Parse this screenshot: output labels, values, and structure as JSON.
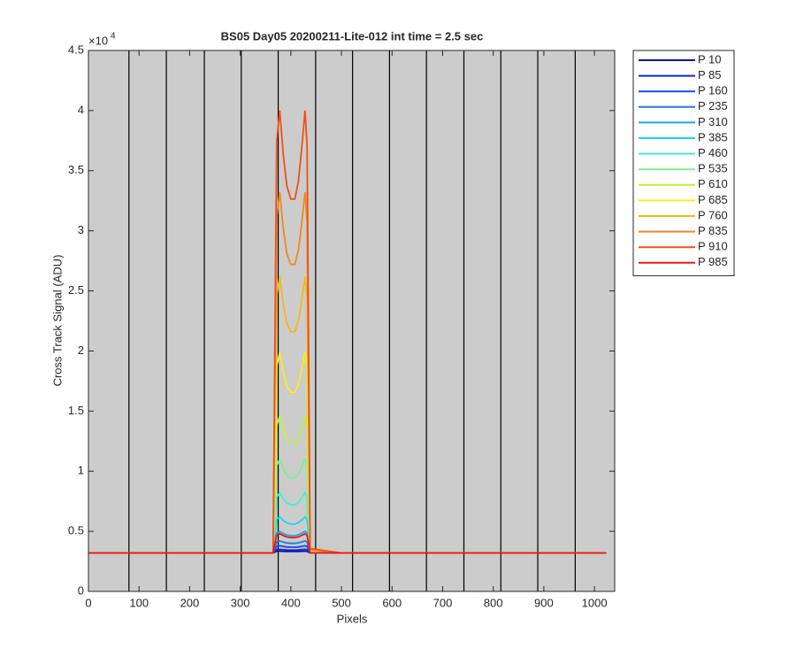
{
  "chart_data": {
    "type": "line",
    "title": "BS05 Day05 20200211-Lite-012 int time = 2.5 sec",
    "x_label": "Pixels",
    "y_label": "Cross Track Signal (ADU)",
    "y_multiplier": {
      "base": "×10",
      "power": "4"
    },
    "xlim": [
      0,
      1040
    ],
    "ylim": [
      0,
      45000
    ],
    "xticks": [
      0,
      100,
      200,
      300,
      400,
      500,
      600,
      700,
      800,
      900,
      1000
    ],
    "yticks": [
      0,
      {
        "value": 5000,
        "label": "0.5"
      },
      {
        "value": 10000,
        "label": "1"
      },
      {
        "value": 15000,
        "label": "1.5"
      },
      {
        "value": 20000,
        "label": "2"
      },
      {
        "value": 25000,
        "label": "2.5"
      },
      {
        "value": 30000,
        "label": "3"
      },
      {
        "value": 35000,
        "label": "3.5"
      },
      {
        "value": 40000,
        "label": "4"
      },
      {
        "value": 45000,
        "label": "4.5"
      }
    ],
    "vertical_lines": [
      80,
      154,
      229,
      302,
      375,
      449,
      522,
      595,
      668,
      742,
      815,
      888,
      962
    ],
    "vertical_line_color": "#000000",
    "background": "#cccccc",
    "legend": "outside-top-right",
    "x": [
      0,
      100,
      200,
      300,
      365,
      372,
      378,
      385,
      392,
      400,
      408,
      415,
      422,
      428,
      432,
      438,
      500,
      600,
      700,
      800,
      900,
      1023
    ],
    "series": [
      {
        "name": "P 10",
        "color": "#0a10b4",
        "values": [
          3200,
          3200,
          3200,
          3200,
          3200,
          3340,
          3350,
          3335,
          3325,
          3320,
          3320,
          3326,
          3338,
          3350,
          3338,
          3200,
          3200,
          3200,
          3200,
          3200,
          3200,
          3200
        ]
      },
      {
        "name": "P 85",
        "color": "#0c2bd6",
        "values": [
          3200,
          3200,
          3200,
          3200,
          3200,
          3480,
          3500,
          3470,
          3450,
          3440,
          3440,
          3450,
          3480,
          3500,
          3480,
          3200,
          3200,
          3200,
          3200,
          3200,
          3200,
          3200
        ]
      },
      {
        "name": "P 160",
        "color": "#1448e8",
        "values": [
          3200,
          3200,
          3200,
          3200,
          3200,
          3760,
          3800,
          3740,
          3700,
          3680,
          3680,
          3700,
          3750,
          3800,
          3750,
          3210,
          3200,
          3200,
          3200,
          3200,
          3200,
          3200
        ]
      },
      {
        "name": "P 235",
        "color": "#1e78e6",
        "values": [
          3200,
          3200,
          3200,
          3200,
          3200,
          4130,
          4200,
          4100,
          4030,
          4000,
          4000,
          4040,
          4120,
          4200,
          4120,
          3210,
          3200,
          3200,
          3200,
          3200,
          3200,
          3200
        ]
      },
      {
        "name": "P 310",
        "color": "#14a8ee",
        "values": [
          3200,
          3200,
          3200,
          3200,
          3200,
          4870,
          5000,
          4820,
          4690,
          4640,
          4640,
          4710,
          4860,
          5000,
          4860,
          3220,
          3200,
          3200,
          3200,
          3200,
          3200,
          3200
        ]
      },
      {
        "name": "P 385",
        "color": "#10dcee",
        "values": [
          3200,
          3200,
          3200,
          3200,
          3200,
          5990,
          6200,
          5900,
          5690,
          5600,
          5600,
          5720,
          5960,
          6200,
          5960,
          3230,
          3200,
          3200,
          3200,
          3200,
          3200,
          3200
        ]
      },
      {
        "name": "P 460",
        "color": "#40f0c8",
        "values": [
          3200,
          3200,
          3200,
          3200,
          3200,
          7850,
          8200,
          7700,
          7350,
          7200,
          7200,
          7400,
          7800,
          8200,
          7800,
          3250,
          3200,
          3200,
          3200,
          3200,
          3200,
          3200
        ]
      },
      {
        "name": "P 535",
        "color": "#80f090",
        "values": [
          3200,
          3200,
          3200,
          3200,
          3200,
          10450,
          11000,
          10220,
          9670,
          9440,
          9440,
          9750,
          10380,
          11000,
          10380,
          3280,
          3200,
          3200,
          3200,
          3200,
          3200,
          3200
        ]
      },
      {
        "name": "P 610",
        "color": "#c0f040",
        "values": [
          3200,
          3200,
          3200,
          3200,
          3200,
          13800,
          14600,
          13460,
          12660,
          12320,
          12320,
          12780,
          13690,
          14600,
          13690,
          3310,
          3200,
          3200,
          3200,
          3200,
          3200,
          3200
        ]
      },
      {
        "name": "P 685",
        "color": "#f0f020",
        "values": [
          3200,
          3200,
          3200,
          3200,
          3200,
          18730,
          19900,
          18230,
          17060,
          16560,
          16560,
          17230,
          18560,
          19900,
          18560,
          3370,
          3200,
          3200,
          3200,
          3200,
          3200,
          3200
        ]
      },
      {
        "name": "P 760",
        "color": "#f0b818",
        "values": [
          3200,
          3200,
          3200,
          3200,
          3200,
          24590,
          26200,
          23900,
          22290,
          21600,
          21600,
          22520,
          24360,
          26200,
          24360,
          3430,
          3200,
          3200,
          3200,
          3200,
          3200,
          3200
        ]
      },
      {
        "name": "P 835",
        "color": "#f08818",
        "values": [
          3200,
          3200,
          3200,
          3200,
          3200,
          31100,
          33200,
          30200,
          28100,
          27200,
          27200,
          28400,
          30800,
          33200,
          30800,
          3500,
          3200,
          3200,
          3200,
          3200,
          3200,
          3200
        ]
      },
      {
        "name": "P 910",
        "color": "#f05018",
        "values": [
          3200,
          3200,
          3200,
          3200,
          3200,
          37420,
          40000,
          36320,
          33740,
          32640,
          32640,
          34110,
          37060,
          40000,
          37060,
          3570,
          3200,
          3200,
          3200,
          3200,
          3200,
          3200
        ]
      },
      {
        "name": "P 985",
        "color": "#e81818",
        "values": [
          3200,
          3200,
          3200,
          3200,
          3200,
          4690,
          4800,
          4640,
          4530,
          4480,
          4480,
          4540,
          4670,
          4800,
          4670,
          3220,
          3200,
          3200,
          3200,
          3200,
          3200,
          3200
        ]
      }
    ]
  }
}
